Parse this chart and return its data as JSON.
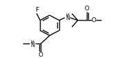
{
  "bg_color": "#ffffff",
  "line_color": "#000000",
  "lw": 1.0,
  "fs": 5.8,
  "figsize": [
    1.64,
    0.84
  ],
  "dpi": 100,
  "xlim": [
    0,
    164
  ],
  "ylim": [
    0,
    84
  ]
}
